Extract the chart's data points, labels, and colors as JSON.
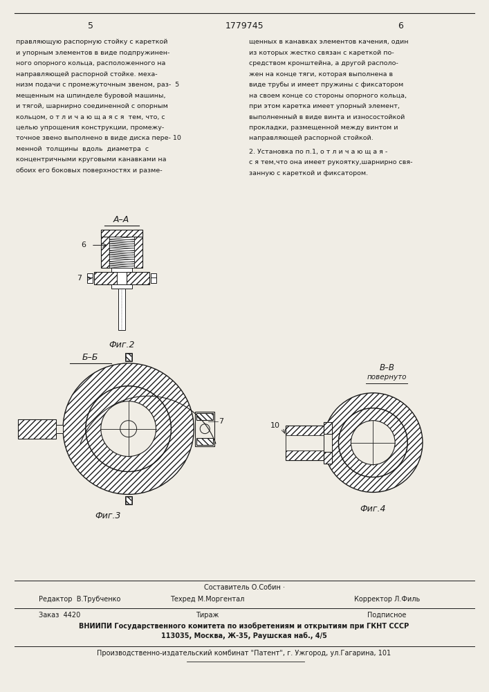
{
  "page_color": "#f0ede5",
  "draw_color": "#1a1a1a",
  "hatch_color": "#333333",
  "title_number": "1779745",
  "page_left": "5",
  "page_right": "6",
  "left_text": [
    "правляющую распорную стойку с кареткой",
    "и упорным элементов в виде подпружинен-",
    "ного опорного кольца, расположенного на",
    "направляющей распорной стойке. меха-",
    "низм подачи с промежуточным звеном, раз-  5",
    "мещенным на шпинделе буровой машины,",
    "и тягой, шарнирно соединенной с опорным",
    "кольцом, о т л и ч а ю щ а я с я  тем, что, с",
    "целью упрощения конструкции, промежу-",
    "точное звено выполнено в виде диска пере- 10",
    "менной  толщины  вдоль  диаметра  с",
    "концентричными круговыми канавками на",
    "обоих его боковых поверхностях и разме-"
  ],
  "right_text": [
    "щенных в канавках элементов качения, один",
    "из которых жестко связан с кареткой по-",
    "средством кронштейна, а другой располо-",
    "жен на конце тяги, которая выполнена в",
    "виде трубы и имеет пружины с фиксатором",
    "на своем конце со стороны опорного кольца,",
    "при этом каретка имеет упорный элемент,",
    "выполненный в виде винта и износостойкой",
    "прокладки, размещенной между винтом и",
    "направляющей распорной стойкой."
  ],
  "right_text2": [
    "2. Установка по п.1, о т л и ч а ю щ а я -",
    "с я тем,что она имеет рукоятку,шарнирно свя-",
    "занную с кареткой и фиксатором."
  ],
  "footer_compiler": "Составитель О.Собин",
  "footer_editor": "Редактор  В.Трубченко",
  "footer_tech": "Техред М.Моргентал",
  "footer_corrector": "Корректор Л.Филь",
  "footer_order": "Заказ  4420",
  "footer_tirazh": "Тираж",
  "footer_podpisnoe": "Подписное",
  "footer_vniip1": "ВНИИПИ Государственного комитета по изобретениям и открытиям при ГКНТ СССР",
  "footer_vniip2": "113035, Москва, Ж-35, Раушская наб., 4/5",
  "footer_patent": "Производственно-издательский комбинат \"Патент\", г. Ужгород, ул.Гагарина, 101"
}
